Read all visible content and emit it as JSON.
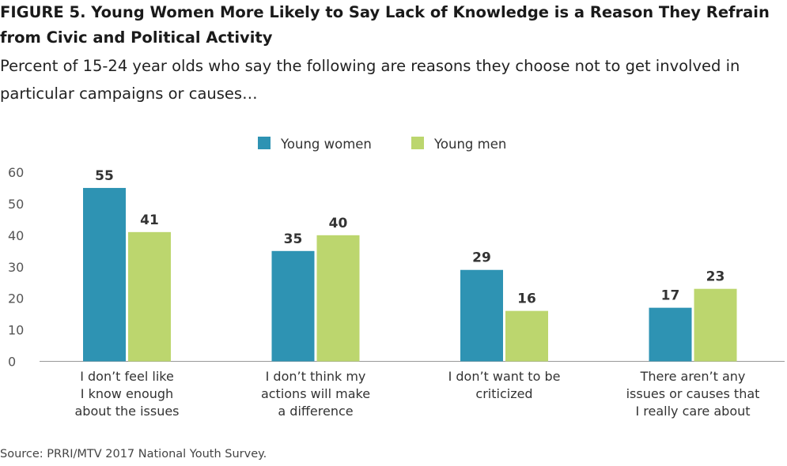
{
  "chart_data": {
    "type": "bar",
    "title": "FIGURE 5. Young Women More Likely to Say Lack of Knowledge is a Reason They Refrain from Civic and Political Activity",
    "subtitle": "Percent of 15-24 year olds who say the following are reasons they choose not to get involved in particular campaigns or causes…",
    "categories": [
      [
        "I don’t feel like",
        "I know enough",
        "about the issues"
      ],
      [
        "I don’t think my",
        "actions will make",
        "a difference"
      ],
      [
        "I don’t want to be",
        "criticized"
      ],
      [
        "There aren’t any",
        "issues or causes that",
        "I really care about"
      ]
    ],
    "series": [
      {
        "name": "Young women",
        "color": "#2e93b3",
        "values": [
          55,
          35,
          29,
          17
        ]
      },
      {
        "name": "Young men",
        "color": "#bcd66e",
        "values": [
          41,
          40,
          16,
          23
        ]
      }
    ],
    "ylim": [
      0,
      60
    ],
    "yticks": [
      0,
      10,
      20,
      30,
      40,
      50,
      60
    ],
    "xlabel": "",
    "ylabel": "",
    "grid": false,
    "legend_position": "top-center",
    "source": "Source: PRRI/MTV 2017 National Youth Survey."
  }
}
